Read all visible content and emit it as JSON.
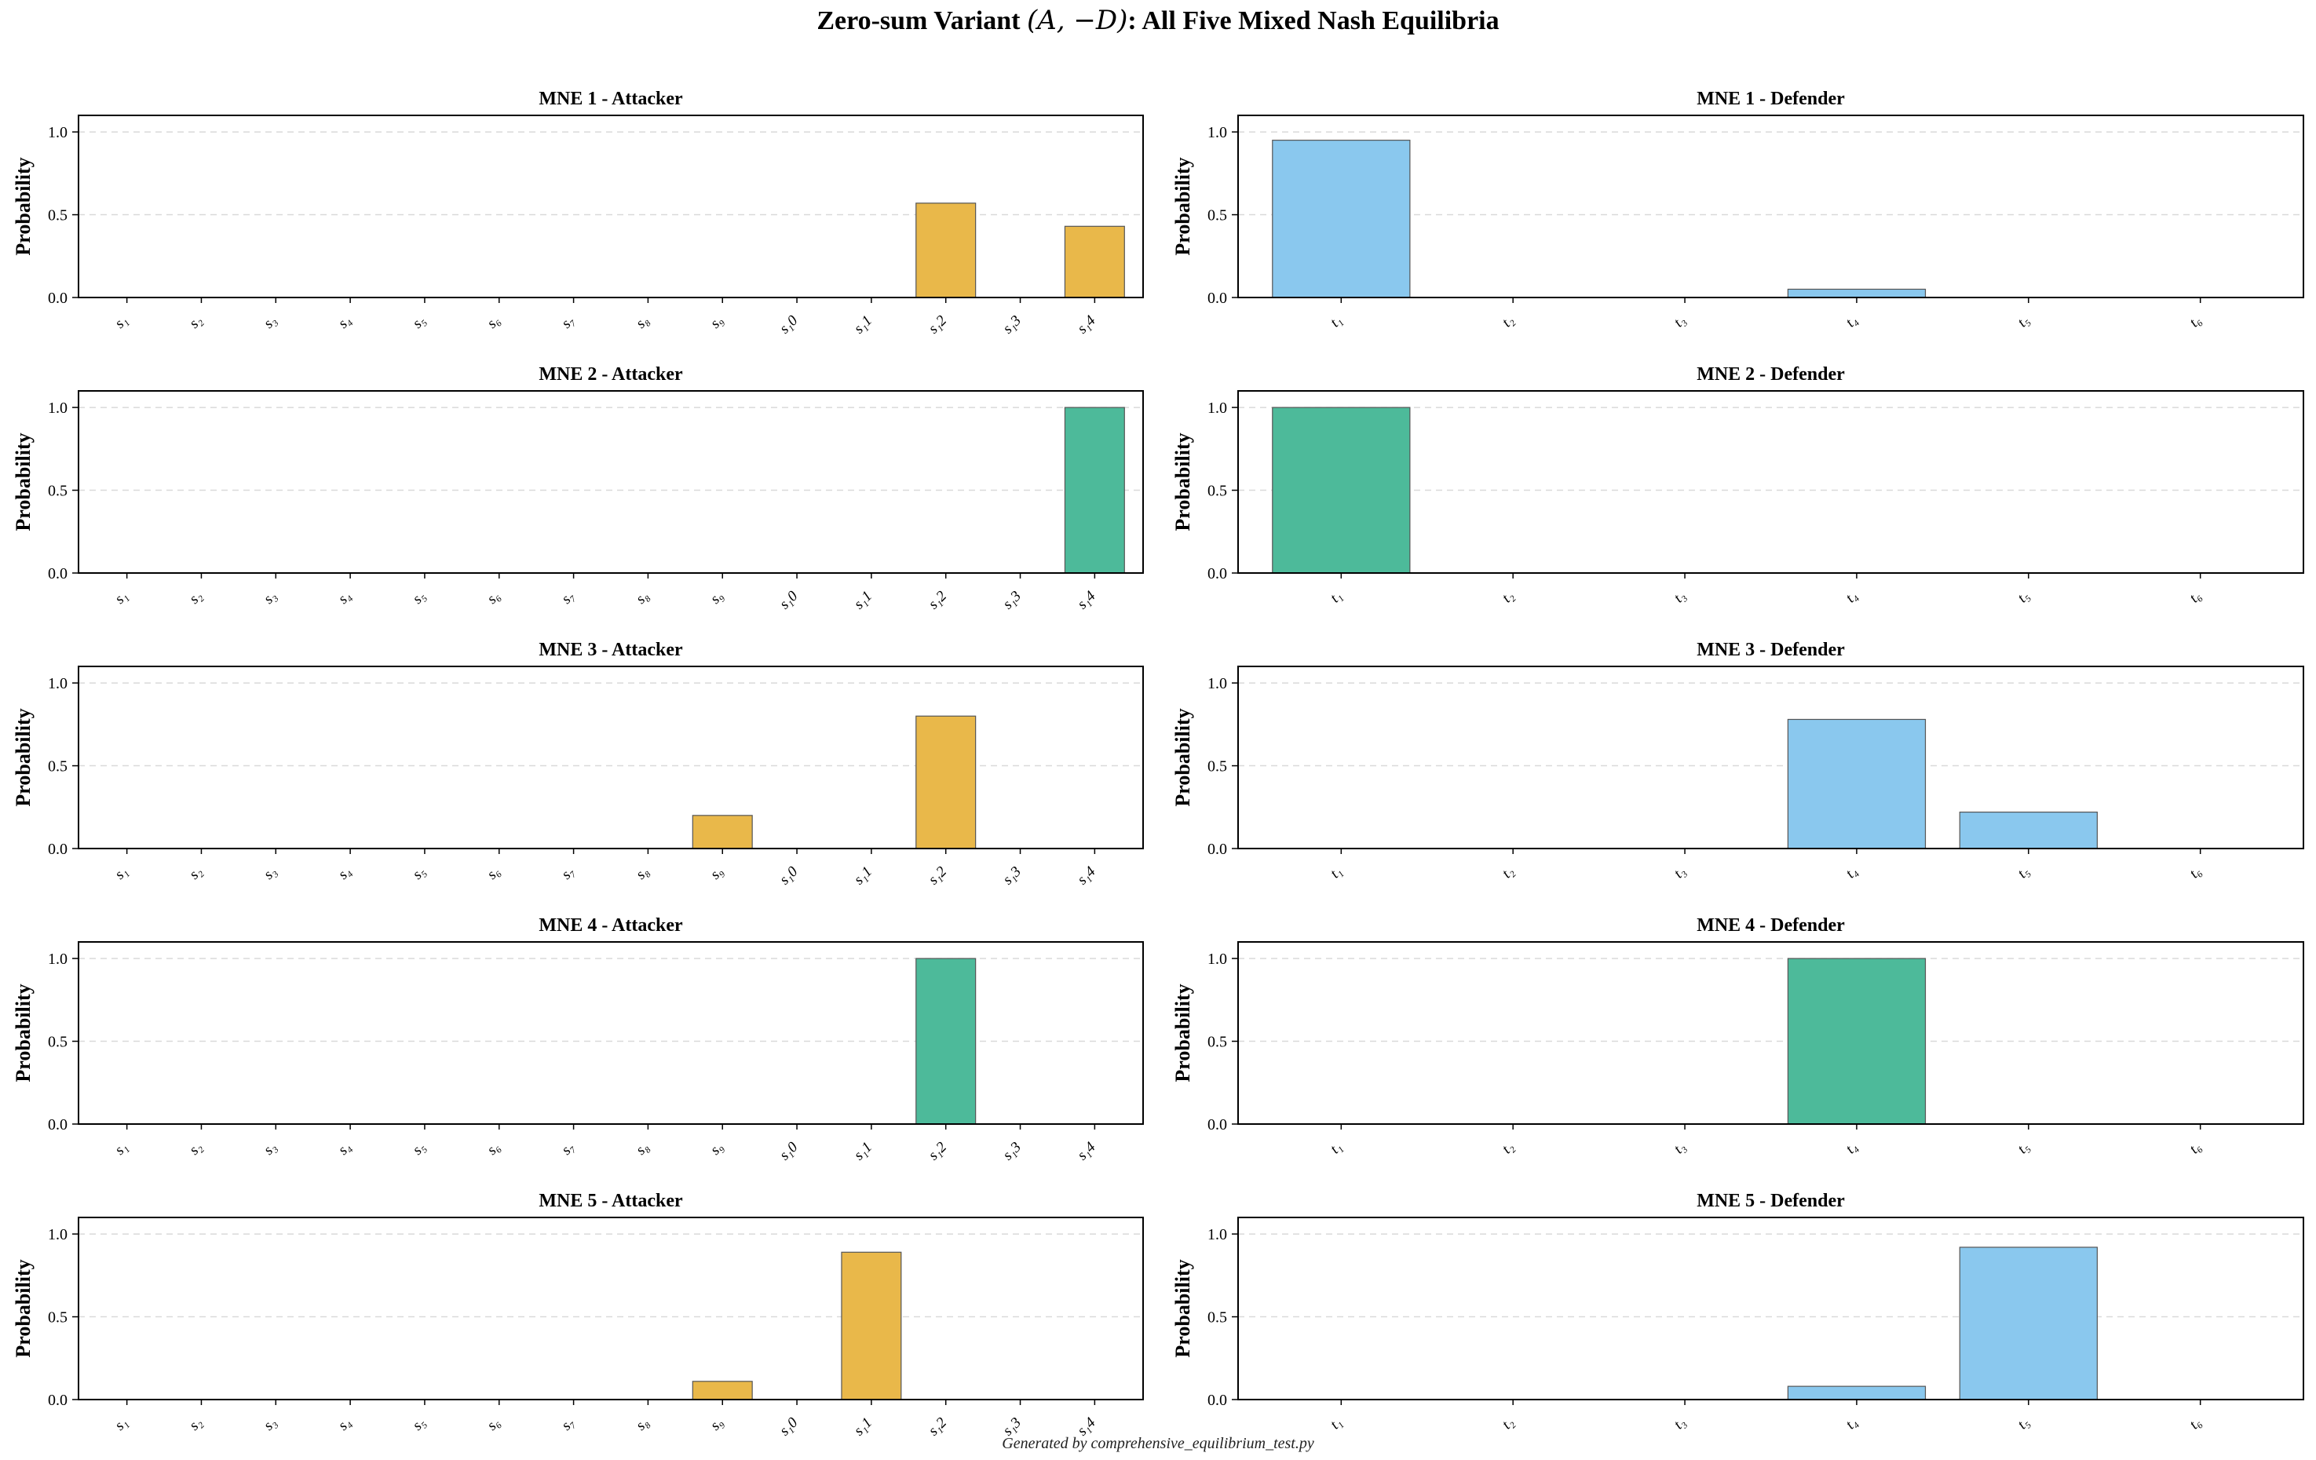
{
  "figure": {
    "title_prefix": "Zero-sum Variant ",
    "title_math": "(A, −D)",
    "title_suffix": ": All Five Mixed Nash Equilibria",
    "footer": "Generated by comprehensive_equilibrium_test.py"
  },
  "colors": {
    "attacker_bar": "#E9B84A",
    "defender_bar": "#8AC8EE",
    "pure_bar": "#4DBA9A",
    "edge": "#555555",
    "grid": "#D9D9D9"
  },
  "chart_data": [
    {
      "type": "bar",
      "title": "MNE 1 - Attacker",
      "ylabel": "Probability",
      "ylim": [
        0,
        1.1
      ],
      "yticks": [
        "0.0",
        "0.5",
        "1.0"
      ],
      "grid": "y-dashed",
      "categories": [
        "s1",
        "s2",
        "s3",
        "s4",
        "s5",
        "s6",
        "s7",
        "s8",
        "s9",
        "s10",
        "s11",
        "s12",
        "s13",
        "s14"
      ],
      "tick_labels": [
        "s₁",
        "s₂",
        "s₃",
        "s₄",
        "s₅",
        "s₆",
        "s₇",
        "s₈",
        "s₉",
        "s₁0",
        "s₁1",
        "s₁2",
        "s₁3",
        "s₁4"
      ],
      "values": [
        0,
        0,
        0,
        0,
        0,
        0,
        0,
        0,
        0,
        0,
        0,
        0.57,
        0,
        0.43
      ],
      "color_key": "attacker_bar"
    },
    {
      "type": "bar",
      "title": "MNE 1 - Defender",
      "ylabel": "Probability",
      "ylim": [
        0,
        1.1
      ],
      "yticks": [
        "0.0",
        "0.5",
        "1.0"
      ],
      "grid": "y-dashed",
      "categories": [
        "t1",
        "t2",
        "t3",
        "t4",
        "t5",
        "t6"
      ],
      "tick_labels": [
        "t₁",
        "t₂",
        "t₃",
        "t₄",
        "t₅",
        "t₆"
      ],
      "values": [
        0.95,
        0,
        0,
        0.05,
        0,
        0
      ],
      "color_key": "defender_bar"
    },
    {
      "type": "bar",
      "title": "MNE 2 - Attacker",
      "ylabel": "Probability",
      "ylim": [
        0,
        1.1
      ],
      "yticks": [
        "0.0",
        "0.5",
        "1.0"
      ],
      "grid": "y-dashed",
      "categories": [
        "s1",
        "s2",
        "s3",
        "s4",
        "s5",
        "s6",
        "s7",
        "s8",
        "s9",
        "s10",
        "s11",
        "s12",
        "s13",
        "s14"
      ],
      "tick_labels": [
        "s₁",
        "s₂",
        "s₃",
        "s₄",
        "s₅",
        "s₆",
        "s₇",
        "s₈",
        "s₉",
        "s₁0",
        "s₁1",
        "s₁2",
        "s₁3",
        "s₁4"
      ],
      "values": [
        0,
        0,
        0,
        0,
        0,
        0,
        0,
        0,
        0,
        0,
        0,
        0,
        0,
        1.0
      ],
      "color_key": "pure_bar"
    },
    {
      "type": "bar",
      "title": "MNE 2 - Defender",
      "ylabel": "Probability",
      "ylim": [
        0,
        1.1
      ],
      "yticks": [
        "0.0",
        "0.5",
        "1.0"
      ],
      "grid": "y-dashed",
      "categories": [
        "t1",
        "t2",
        "t3",
        "t4",
        "t5",
        "t6"
      ],
      "tick_labels": [
        "t₁",
        "t₂",
        "t₃",
        "t₄",
        "t₅",
        "t₆"
      ],
      "values": [
        1.0,
        0,
        0,
        0,
        0,
        0
      ],
      "color_key": "pure_bar"
    },
    {
      "type": "bar",
      "title": "MNE 3 - Attacker",
      "ylabel": "Probability",
      "ylim": [
        0,
        1.1
      ],
      "yticks": [
        "0.0",
        "0.5",
        "1.0"
      ],
      "grid": "y-dashed",
      "categories": [
        "s1",
        "s2",
        "s3",
        "s4",
        "s5",
        "s6",
        "s7",
        "s8",
        "s9",
        "s10",
        "s11",
        "s12",
        "s13",
        "s14"
      ],
      "tick_labels": [
        "s₁",
        "s₂",
        "s₃",
        "s₄",
        "s₅",
        "s₆",
        "s₇",
        "s₈",
        "s₉",
        "s₁0",
        "s₁1",
        "s₁2",
        "s₁3",
        "s₁4"
      ],
      "values": [
        0,
        0,
        0,
        0,
        0,
        0,
        0,
        0,
        0.2,
        0,
        0,
        0.8,
        0,
        0
      ],
      "color_key": "attacker_bar"
    },
    {
      "type": "bar",
      "title": "MNE 3 - Defender",
      "ylabel": "Probability",
      "ylim": [
        0,
        1.1
      ],
      "yticks": [
        "0.0",
        "0.5",
        "1.0"
      ],
      "grid": "y-dashed",
      "categories": [
        "t1",
        "t2",
        "t3",
        "t4",
        "t5",
        "t6"
      ],
      "tick_labels": [
        "t₁",
        "t₂",
        "t₃",
        "t₄",
        "t₅",
        "t₆"
      ],
      "values": [
        0,
        0,
        0,
        0.78,
        0.22,
        0
      ],
      "color_key": "defender_bar"
    },
    {
      "type": "bar",
      "title": "MNE 4 - Attacker",
      "ylabel": "Probability",
      "ylim": [
        0,
        1.1
      ],
      "yticks": [
        "0.0",
        "0.5",
        "1.0"
      ],
      "grid": "y-dashed",
      "categories": [
        "s1",
        "s2",
        "s3",
        "s4",
        "s5",
        "s6",
        "s7",
        "s8",
        "s9",
        "s10",
        "s11",
        "s12",
        "s13",
        "s14"
      ],
      "tick_labels": [
        "s₁",
        "s₂",
        "s₃",
        "s₄",
        "s₅",
        "s₆",
        "s₇",
        "s₈",
        "s₉",
        "s₁0",
        "s₁1",
        "s₁2",
        "s₁3",
        "s₁4"
      ],
      "values": [
        0,
        0,
        0,
        0,
        0,
        0,
        0,
        0,
        0,
        0,
        0,
        1.0,
        0,
        0
      ],
      "color_key": "pure_bar"
    },
    {
      "type": "bar",
      "title": "MNE 4 - Defender",
      "ylabel": "Probability",
      "ylim": [
        0,
        1.1
      ],
      "yticks": [
        "0.0",
        "0.5",
        "1.0"
      ],
      "grid": "y-dashed",
      "categories": [
        "t1",
        "t2",
        "t3",
        "t4",
        "t5",
        "t6"
      ],
      "tick_labels": [
        "t₁",
        "t₂",
        "t₃",
        "t₄",
        "t₅",
        "t₆"
      ],
      "values": [
        0,
        0,
        0,
        1.0,
        0,
        0
      ],
      "color_key": "pure_bar"
    },
    {
      "type": "bar",
      "title": "MNE 5 - Attacker",
      "ylabel": "Probability",
      "ylim": [
        0,
        1.1
      ],
      "yticks": [
        "0.0",
        "0.5",
        "1.0"
      ],
      "grid": "y-dashed",
      "categories": [
        "s1",
        "s2",
        "s3",
        "s4",
        "s5",
        "s6",
        "s7",
        "s8",
        "s9",
        "s10",
        "s11",
        "s12",
        "s13",
        "s14"
      ],
      "tick_labels": [
        "s₁",
        "s₂",
        "s₃",
        "s₄",
        "s₅",
        "s₆",
        "s₇",
        "s₈",
        "s₉",
        "s₁0",
        "s₁1",
        "s₁2",
        "s₁3",
        "s₁4"
      ],
      "values": [
        0,
        0,
        0,
        0,
        0,
        0,
        0,
        0,
        0.11,
        0,
        0.89,
        0,
        0,
        0
      ],
      "color_key": "attacker_bar"
    },
    {
      "type": "bar",
      "title": "MNE 5 - Defender",
      "ylabel": "Probability",
      "ylim": [
        0,
        1.1
      ],
      "yticks": [
        "0.0",
        "0.5",
        "1.0"
      ],
      "grid": "y-dashed",
      "categories": [
        "t1",
        "t2",
        "t3",
        "t4",
        "t5",
        "t6"
      ],
      "tick_labels": [
        "t₁",
        "t₂",
        "t₃",
        "t₄",
        "t₅",
        "t₆"
      ],
      "values": [
        0,
        0,
        0,
        0.08,
        0.92,
        0
      ],
      "color_key": "defender_bar"
    }
  ]
}
